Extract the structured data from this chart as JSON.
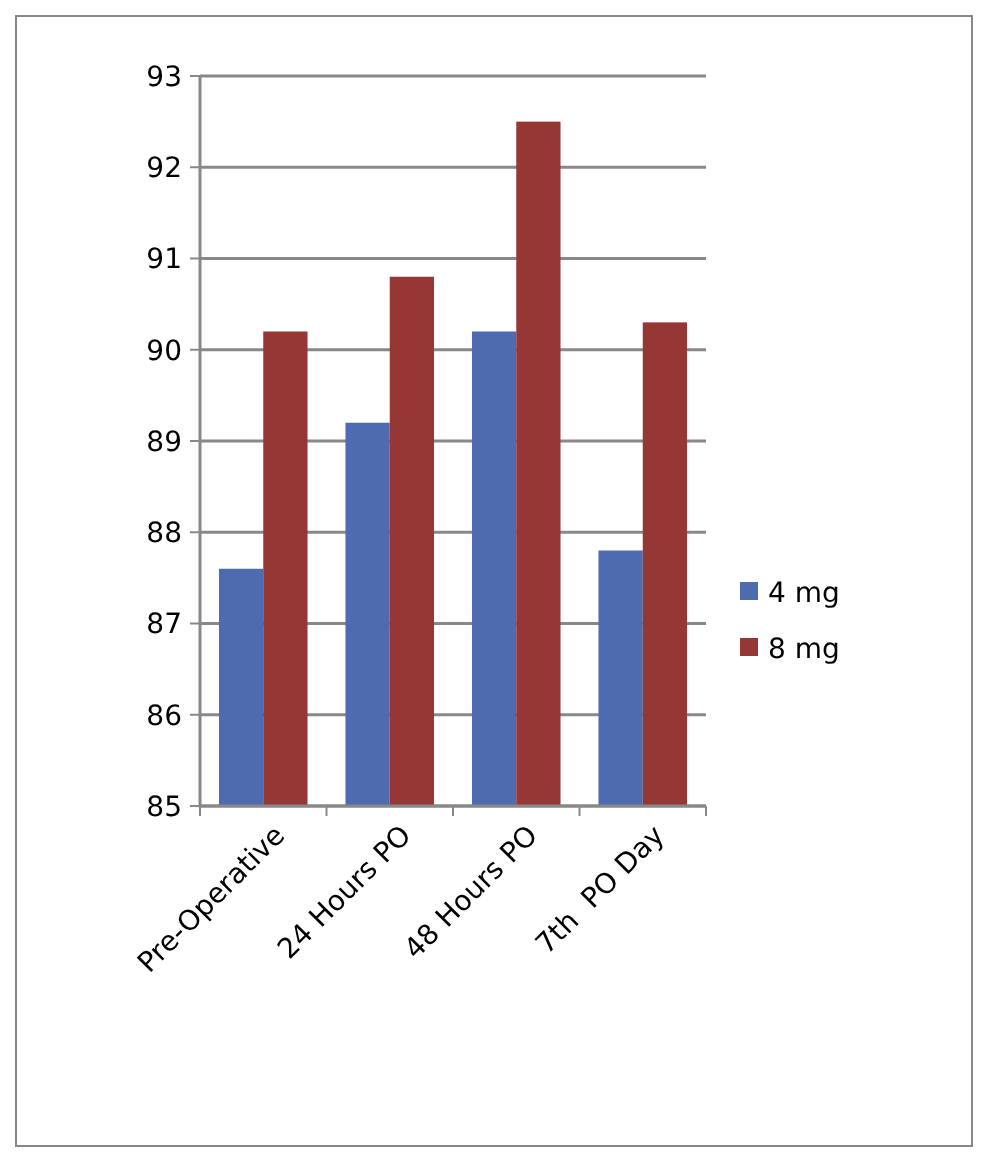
{
  "chart_data": {
    "type": "bar",
    "categories": [
      "Pre-Operative",
      "24 Hours PO",
      "48 Hours PO",
      "7th  PO Day"
    ],
    "series": [
      {
        "name": "4 mg",
        "color": "#4f6bb0",
        "values": [
          87.6,
          89.2,
          90.2,
          87.8
        ]
      },
      {
        "name": "8 mg",
        "color": "#953735",
        "values": [
          90.2,
          90.8,
          92.5,
          90.3
        ]
      }
    ],
    "ylim": [
      85,
      93
    ],
    "yticks": [
      85,
      86,
      87,
      88,
      89,
      90,
      91,
      92,
      93
    ],
    "grid": "y",
    "legend": "right"
  }
}
